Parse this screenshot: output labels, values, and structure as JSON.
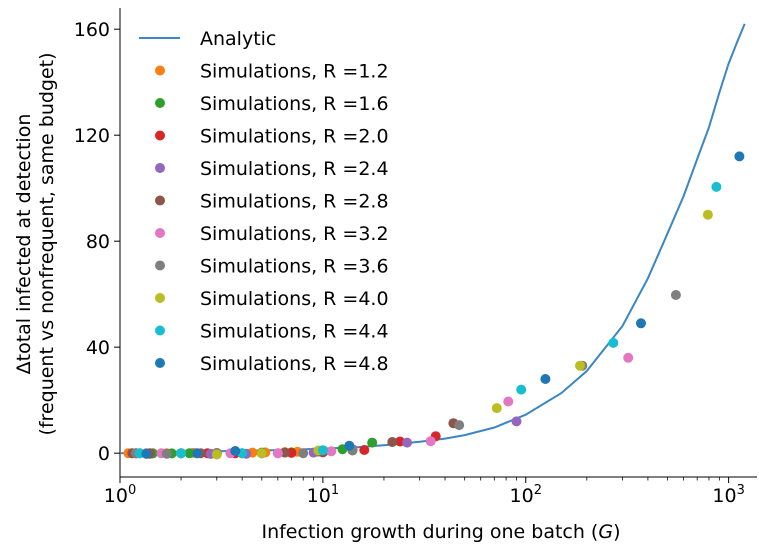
{
  "chart_data": {
    "type": "scatter",
    "title": "",
    "xlabel_main": "Infection growth during one batch (",
    "xlabel_var": "G",
    "xlabel_end": ")",
    "ylabel_line1": "Δtotal infected at detection",
    "ylabel_line2": "(frequent vs nonfrequent, same budget)",
    "xscale": "log",
    "xlim": [
      1.0,
      1380
    ],
    "ylim": [
      -9,
      168
    ],
    "xticks": [
      {
        "value": 1,
        "base": "10",
        "exp": "0"
      },
      {
        "value": 10,
        "base": "10",
        "exp": "1"
      },
      {
        "value": 100,
        "base": "10",
        "exp": "2"
      },
      {
        "value": 1000,
        "base": "10",
        "exp": "3"
      }
    ],
    "yticks": [
      0,
      40,
      80,
      120,
      160
    ],
    "grid": false,
    "legend_position": "top-left",
    "analytic": {
      "name": "Analytic",
      "color": "#3b86c4",
      "x": [
        1,
        1.5,
        2,
        3,
        5,
        7,
        10,
        15,
        20,
        30,
        40,
        50,
        70,
        100,
        150,
        200,
        300,
        400,
        500,
        600,
        700,
        800,
        900,
        1000,
        1100,
        1200
      ],
      "y": [
        0,
        0.3,
        0.5,
        0.7,
        1.0,
        1.3,
        1.7,
        2.3,
        3.0,
        4.3,
        5.5,
        6.8,
        9.7,
        14.5,
        22.7,
        31,
        48,
        66,
        83,
        97,
        111,
        123,
        136,
        147,
        155,
        162
      ]
    },
    "series": [
      {
        "name": "Simulations, R =1.2",
        "color": "#ff7f0e",
        "points": [
          [
            1.1,
            0
          ],
          [
            1.25,
            0
          ],
          [
            1.45,
            0
          ],
          [
            1.7,
            0
          ],
          [
            2.3,
            0.1
          ],
          [
            3.0,
            0.1
          ],
          [
            4.5,
            0.2
          ],
          [
            5.2,
            0.3
          ],
          [
            6.5,
            0.4
          ],
          [
            7.5,
            0.5
          ]
        ]
      },
      {
        "name": "Simulations, R =1.6",
        "color": "#2ca02c",
        "points": [
          [
            1.2,
            0
          ],
          [
            1.45,
            -0.1
          ],
          [
            1.8,
            -0.1
          ],
          [
            2.2,
            0
          ],
          [
            3.0,
            0
          ],
          [
            3.7,
            0.1
          ],
          [
            5.0,
            0.2
          ],
          [
            7.0,
            0.3
          ],
          [
            9.5,
            0.6
          ],
          [
            12.5,
            1.5
          ],
          [
            17.5,
            4.0
          ]
        ]
      },
      {
        "name": "Simulations, R =2.0",
        "color": "#d62728",
        "points": [
          [
            1.2,
            0
          ],
          [
            1.4,
            0
          ],
          [
            2.0,
            0
          ],
          [
            2.7,
            0
          ],
          [
            3.7,
            0
          ],
          [
            5.0,
            0
          ],
          [
            7.0,
            0.1
          ],
          [
            10.0,
            0.3
          ],
          [
            16.0,
            1.2
          ],
          [
            24.0,
            4.4
          ],
          [
            36.0,
            6.4
          ]
        ]
      },
      {
        "name": "Simulations, R =2.4",
        "color": "#9467bd",
        "points": [
          [
            1.15,
            0
          ],
          [
            1.35,
            0
          ],
          [
            2.0,
            0
          ],
          [
            2.8,
            -0.3
          ],
          [
            4.2,
            -0.2
          ],
          [
            6.0,
            0
          ],
          [
            9.0,
            0.2
          ],
          [
            14.0,
            1.5
          ],
          [
            26.0,
            4.0
          ],
          [
            90.0,
            12.0
          ]
        ]
      },
      {
        "name": "Simulations, R =2.8",
        "color": "#8c564b",
        "points": [
          [
            1.15,
            0
          ],
          [
            1.4,
            -0.2
          ],
          [
            2.5,
            0
          ],
          [
            4.0,
            0
          ],
          [
            6.5,
            0.2
          ],
          [
            10.0,
            0.5
          ],
          [
            22.0,
            4.2
          ],
          [
            44.0,
            11.3
          ]
        ]
      },
      {
        "name": "Simulations, R =3.2",
        "color": "#e377c2",
        "points": [
          [
            1.2,
            0
          ],
          [
            1.6,
            0
          ],
          [
            2.4,
            0
          ],
          [
            3.5,
            0
          ],
          [
            6.0,
            0
          ],
          [
            11.0,
            0.7
          ],
          [
            34.0,
            4.5
          ],
          [
            82.0,
            19.5
          ],
          [
            320.0,
            36.0
          ]
        ]
      },
      {
        "name": "Simulations, R =3.6",
        "color": "#7f7f7f",
        "points": [
          [
            1.2,
            0
          ],
          [
            1.7,
            -0.2
          ],
          [
            3.0,
            0
          ],
          [
            5.0,
            0
          ],
          [
            8.0,
            0
          ],
          [
            14.0,
            1.0
          ],
          [
            47.0,
            10.6
          ],
          [
            190.0,
            33.0
          ],
          [
            550.0,
            59.7
          ]
        ]
      },
      {
        "name": "Simulations, R =4.0",
        "color": "#bcbd22",
        "points": [
          [
            1.25,
            0
          ],
          [
            2.0,
            0
          ],
          [
            3.0,
            -0.5
          ],
          [
            5.0,
            0
          ],
          [
            9.5,
            1.0
          ],
          [
            72.0,
            17.0
          ],
          [
            185.0,
            33.0
          ],
          [
            790.0,
            90.0
          ]
        ]
      },
      {
        "name": "Simulations, R =4.4",
        "color": "#17becf",
        "points": [
          [
            1.25,
            0
          ],
          [
            2.0,
            0
          ],
          [
            4.0,
            0
          ],
          [
            10.0,
            1.1
          ],
          [
            95.0,
            24.0
          ],
          [
            270.0,
            41.6
          ],
          [
            870.0,
            100.5
          ]
        ]
      },
      {
        "name": "Simulations, R =4.8",
        "color": "#1f77b4",
        "points": [
          [
            1.35,
            -0.3
          ],
          [
            2.4,
            0
          ],
          [
            3.7,
            0.8
          ],
          [
            13.5,
            2.8
          ],
          [
            125.0,
            28.0
          ],
          [
            370.0,
            49.0
          ],
          [
            1130.0,
            112.0
          ]
        ]
      }
    ]
  }
}
